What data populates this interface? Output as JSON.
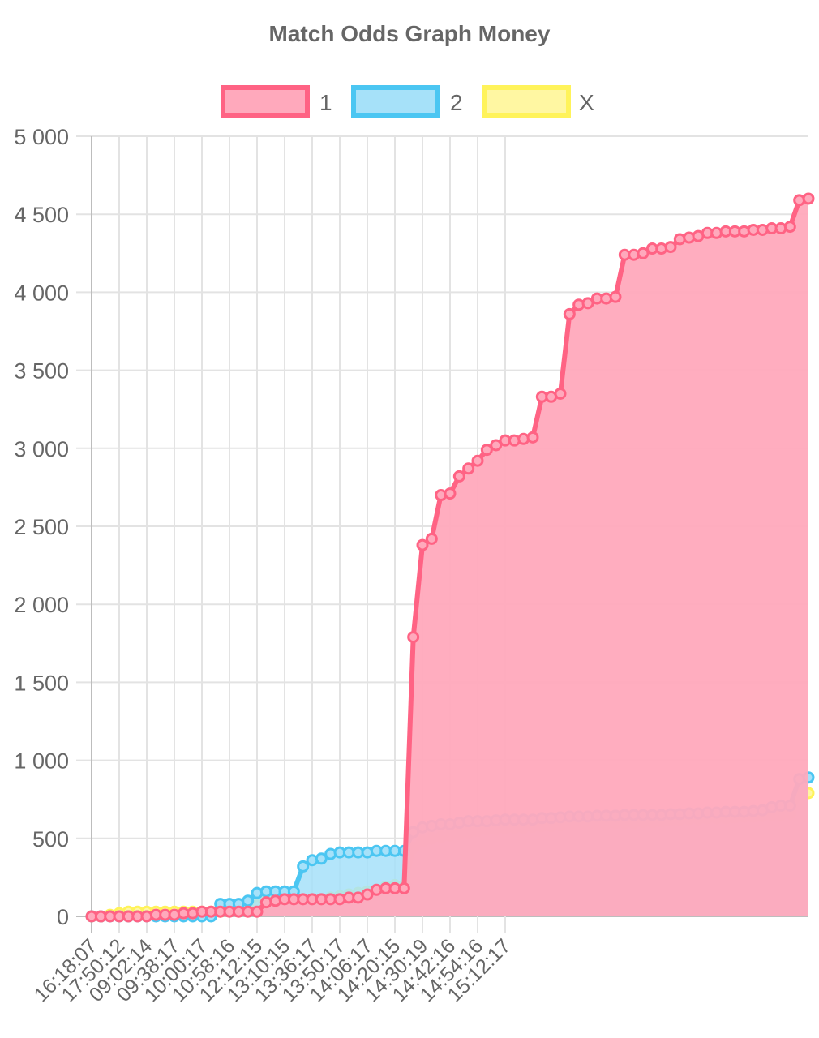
{
  "chart_data": {
    "type": "line",
    "title": "Match Odds Graph Money",
    "legend_position": "top",
    "grid": true,
    "ylim": [
      0,
      5000
    ],
    "y_ticks": [
      "0",
      "500",
      "1 000",
      "1 500",
      "2 000",
      "2 500",
      "3 000",
      "3 500",
      "4 000",
      "4 500",
      "5 000"
    ],
    "x_tick_labels": [
      "16:18:07",
      "17:50:12",
      "09:02:14",
      "09:38:17",
      "10:00:17",
      "10:58:16",
      "12:12:15",
      "13:10:15",
      "13:36:17",
      "13:50:17",
      "14:06:17",
      "14:20:15",
      "14:30:19",
      "14:42:16",
      "14:54:16",
      "15:12:17"
    ],
    "series": [
      {
        "name": "1",
        "stroke": "#ff6384",
        "fill": "#ffa9bc",
        "values": [
          0,
          0,
          0,
          0,
          0,
          0,
          0,
          10,
          10,
          10,
          20,
          20,
          30,
          30,
          30,
          30,
          30,
          30,
          30,
          90,
          100,
          110,
          110,
          110,
          110,
          110,
          110,
          110,
          120,
          120,
          140,
          170,
          180,
          180,
          180,
          1790,
          2380,
          2420,
          2700,
          2710,
          2820,
          2870,
          2920,
          2990,
          3020,
          3050,
          3050,
          3060,
          3070,
          3330,
          3330,
          3350,
          3860,
          3920,
          3930,
          3960,
          3960,
          3970,
          4240,
          4240,
          4250,
          4280,
          4280,
          4290,
          4340,
          4350,
          4360,
          4380,
          4380,
          4390,
          4390,
          4390,
          4400,
          4400,
          4410,
          4410,
          4420,
          4590,
          4600
        ]
      },
      {
        "name": "2",
        "stroke": "#4bc6f2",
        "fill": "#a6e1f9",
        "values": [
          0,
          0,
          0,
          0,
          0,
          0,
          0,
          0,
          0,
          0,
          0,
          0,
          0,
          0,
          80,
          80,
          80,
          100,
          150,
          160,
          160,
          160,
          160,
          320,
          360,
          370,
          400,
          410,
          410,
          410,
          410,
          420,
          420,
          420,
          420,
          540,
          570,
          580,
          590,
          590,
          600,
          610,
          610,
          610,
          615,
          620,
          620,
          620,
          620,
          630,
          630,
          635,
          640,
          640,
          640,
          645,
          645,
          645,
          650,
          650,
          650,
          650,
          650,
          655,
          655,
          660,
          660,
          665,
          665,
          670,
          670,
          670,
          675,
          680,
          700,
          710,
          710,
          880,
          890
        ]
      },
      {
        "name": "X",
        "stroke": "#fff35a",
        "fill": "#fff7a2",
        "values": [
          0,
          0,
          10,
          20,
          30,
          30,
          30,
          30,
          30,
          30,
          30,
          30,
          30,
          30,
          30,
          40,
          50,
          60,
          70,
          100,
          110,
          110,
          110,
          110,
          110,
          110,
          120,
          130,
          140,
          150,
          160,
          170,
          190,
          200,
          200,
          440,
          480,
          500,
          510,
          520,
          530,
          540,
          550,
          560,
          560,
          565,
          570,
          570,
          575,
          580,
          580,
          585,
          590,
          590,
          590,
          595,
          595,
          600,
          600,
          600,
          605,
          605,
          610,
          615,
          620,
          625,
          625,
          630,
          630,
          630,
          635,
          640,
          640,
          645,
          650,
          650,
          660,
          780,
          790
        ]
      }
    ]
  }
}
